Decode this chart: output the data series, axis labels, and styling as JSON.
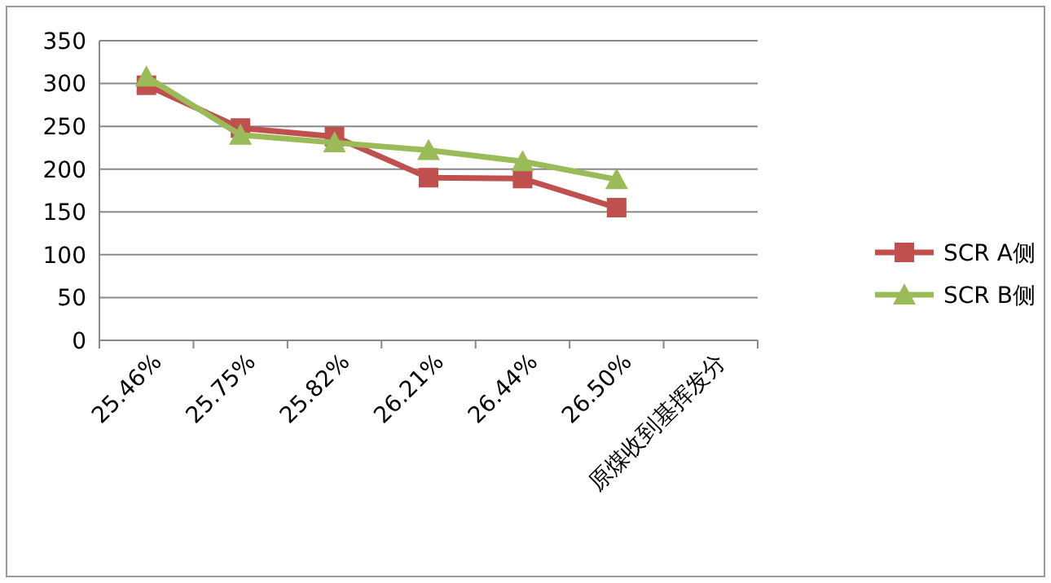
{
  "chart_data": {
    "type": "line",
    "categories": [
      "25.46%",
      "25.75%",
      "25.82%",
      "26.21%",
      "26.44%",
      "26.50%",
      "原煤收到基挥发分"
    ],
    "series": [
      {
        "name": "SCR A侧",
        "color": "#c0504d",
        "values": [
          298,
          248,
          238,
          190,
          189,
          155,
          null
        ],
        "marker": "square"
      },
      {
        "name": "SCR B侧",
        "color": "#9bbb59",
        "values": [
          308,
          240,
          231,
          222,
          209,
          188,
          null
        ],
        "marker": "triangle"
      }
    ],
    "ylim": [
      0,
      350
    ],
    "yticks": [
      0,
      50,
      100,
      150,
      200,
      250,
      300,
      350
    ],
    "grid": "y",
    "legend": "right",
    "line_style": "solid"
  }
}
